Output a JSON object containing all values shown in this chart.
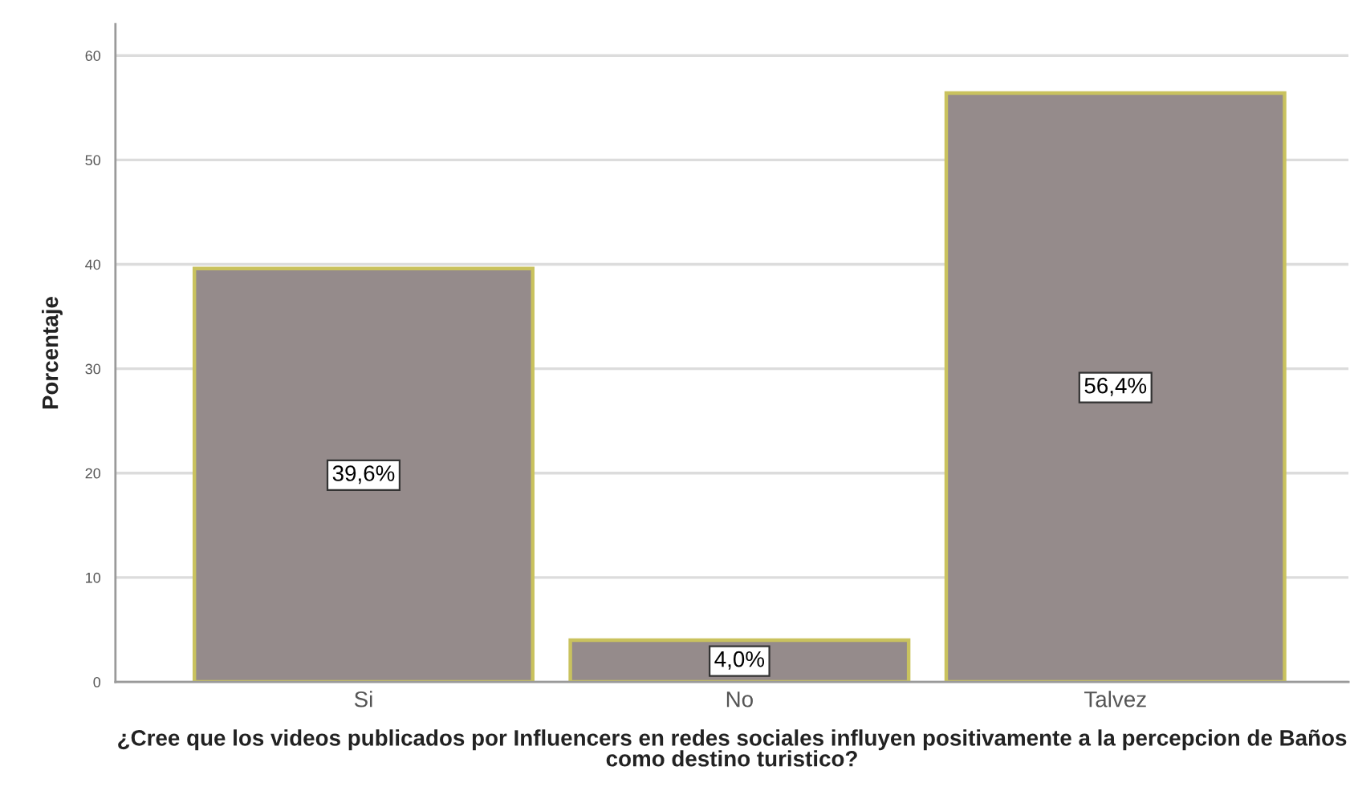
{
  "chart_data": {
    "type": "bar",
    "xlabel": "¿Cree que los videos publicados por Influencers en redes sociales influyen positivamente a la percepcion de Baños como destino turistico?",
    "ylabel": "Porcentaje",
    "categories": [
      "Si",
      "No",
      "Talvez"
    ],
    "values": [
      39.6,
      4.0,
      56.4
    ],
    "value_labels": [
      "39,6%",
      "4,0%",
      "56,4%"
    ],
    "color": "#958b8b",
    "ylim": [
      0,
      63
    ],
    "yticks": [
      0,
      10,
      20,
      30,
      40,
      50,
      60
    ],
    "grid": "y"
  }
}
